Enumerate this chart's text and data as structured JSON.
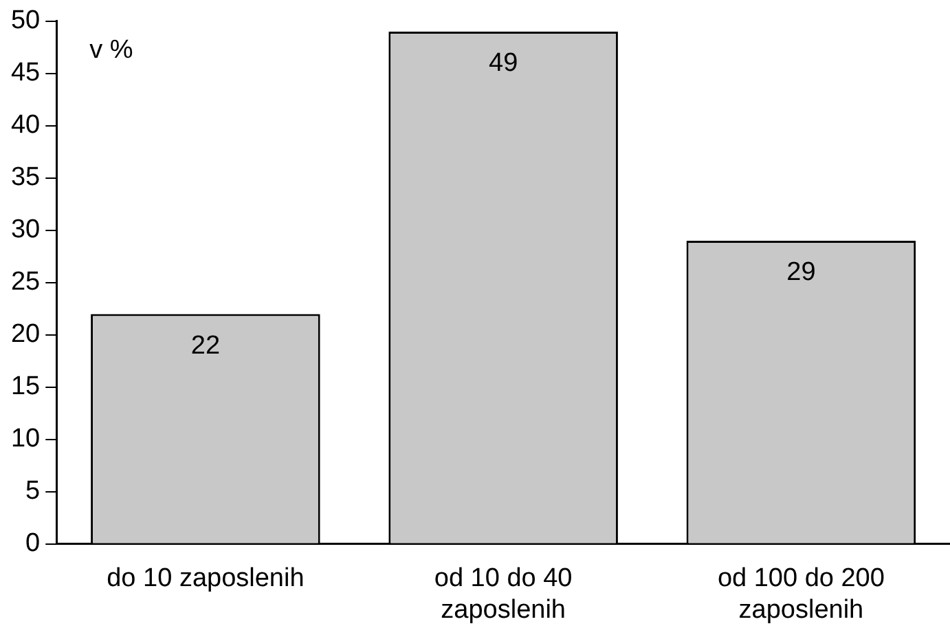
{
  "chart_data": {
    "type": "bar",
    "ylabel": "v %",
    "categories": [
      "do 10 zaposlenih",
      "od 10 do 40 zaposlenih",
      "od 100 do 200 zaposlenih"
    ],
    "values": [
      22,
      49,
      29
    ],
    "color": "#c8c8c8",
    "data_labels": true,
    "ylim": [
      0,
      50
    ],
    "yticks": [
      0,
      5,
      10,
      15,
      20,
      25,
      30,
      35,
      40,
      45,
      50
    ],
    "grid": false,
    "legend": false
  }
}
